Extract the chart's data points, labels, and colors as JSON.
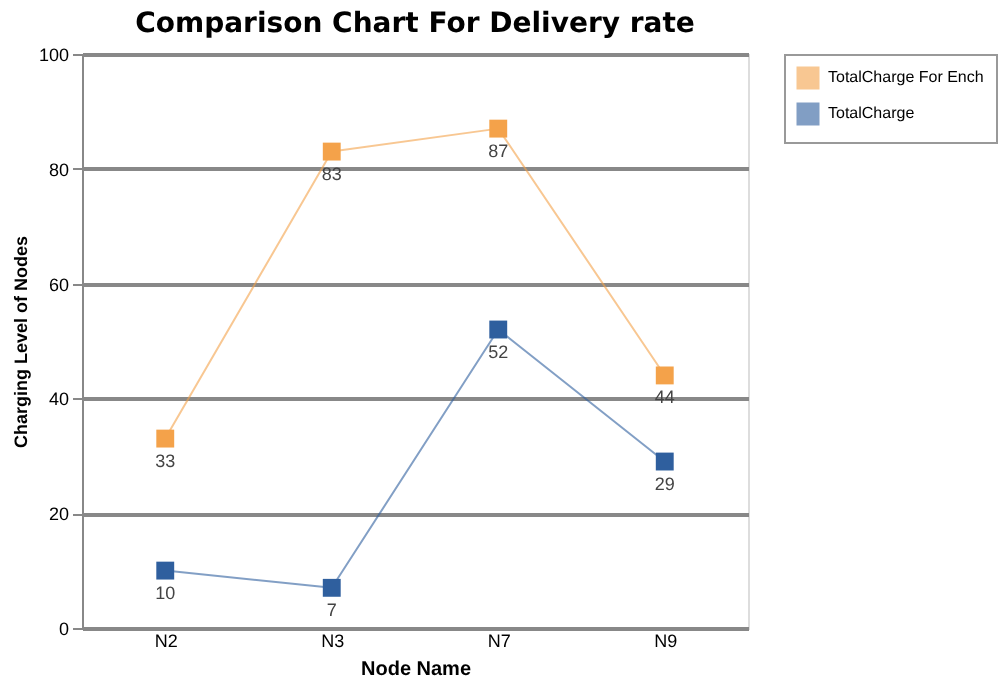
{
  "chart_data": {
    "type": "line",
    "title": "Comparison Chart For Delivery rate",
    "xlabel": "Node Name",
    "ylabel": "Charging Level of Nodes",
    "categories": [
      "N2",
      "N3",
      "N7",
      "N9"
    ],
    "series": [
      {
        "name": "TotalCharge For Ench",
        "color": "#f4a24a",
        "values": [
          33,
          83,
          87,
          44
        ]
      },
      {
        "name": "TotalCharge",
        "color": "#2f5f9e",
        "values": [
          10,
          7,
          52,
          29
        ]
      }
    ],
    "ylim": [
      0,
      100
    ],
    "yticks": [
      0,
      20,
      40,
      60,
      80,
      100
    ],
    "grid": "y",
    "legend": "right",
    "marker": "square",
    "line_style": "solid",
    "data_labels": true
  }
}
